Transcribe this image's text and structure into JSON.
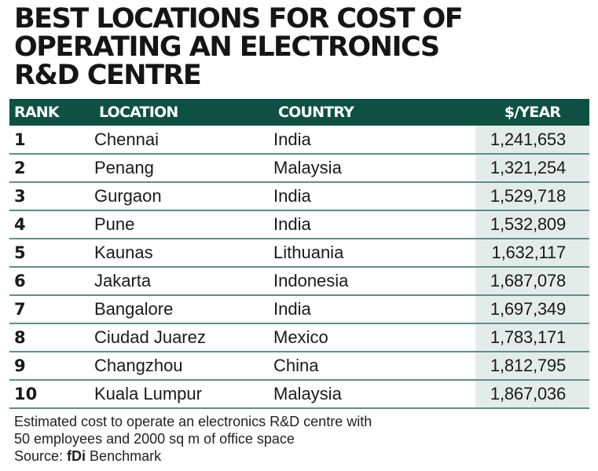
{
  "title_lines": [
    "BEST LOCATIONS FOR COST OF",
    "OPERATING AN ELECTRONICS",
    "R&D CENTRE"
  ],
  "header": {
    "rank": "RANK",
    "location": "LOCATION",
    "country": "COUNTRY",
    "value": "$/YEAR"
  },
  "colors": {
    "header_bg": "#0e5143",
    "value_column_bg": "#e4ece9",
    "row_divider": "#5f8e86"
  },
  "chart_data": {
    "type": "table",
    "columns": [
      "RANK",
      "LOCATION",
      "COUNTRY",
      "$/YEAR"
    ],
    "rows": [
      [
        "1",
        "Chennai",
        "India",
        "1,241,653"
      ],
      [
        "2",
        "Penang",
        "Malaysia",
        "1,321,254"
      ],
      [
        "3",
        "Gurgaon",
        "India",
        "1,529,718"
      ],
      [
        "4",
        "Pune",
        "India",
        "1,532,809"
      ],
      [
        "5",
        "Kaunas",
        "Lithuania",
        "1,632,117"
      ],
      [
        "6",
        "Jakarta",
        "Indonesia",
        "1,687,078"
      ],
      [
        "7",
        "Bangalore",
        "India",
        "1,697,349"
      ],
      [
        "8",
        "Ciudad Juarez",
        "Mexico",
        "1,783,171"
      ],
      [
        "9",
        "Changzhou",
        "China",
        "1,812,795"
      ],
      [
        "10",
        "Kuala Lumpur",
        "Malaysia",
        "1,867,036"
      ]
    ]
  },
  "note_lines": [
    "Estimated cost to operate an electronics R&D centre with",
    "50 employees and 2000 sq m of office space"
  ],
  "source": {
    "label": "Source: ",
    "name": "fDi",
    "rest": " Benchmark"
  }
}
